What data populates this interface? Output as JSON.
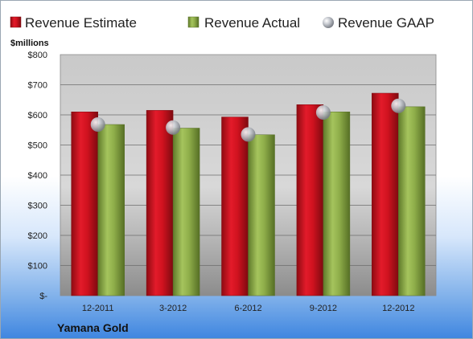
{
  "chart_data": {
    "type": "bar",
    "ylabel": "$millions",
    "categories": [
      "12-2011",
      "3-2012",
      "6-2012",
      "9-2012",
      "12-2012"
    ],
    "series": [
      {
        "name": "Revenue Estimate",
        "values": [
          610,
          615,
          593,
          634,
          672
        ],
        "color": "#c8102e"
      },
      {
        "name": "Revenue Actual",
        "values": [
          568,
          556,
          534,
          610,
          627
        ],
        "color": "#8fae4a"
      },
      {
        "name": "Revenue GAAP",
        "values": [
          568,
          558,
          535,
          608,
          630
        ],
        "marker": "sphere",
        "color": "#b9bcc2"
      }
    ],
    "y_ticks": [
      "$-",
      "$100",
      "$200",
      "$300",
      "$400",
      "$500",
      "$600",
      "$700",
      "$800"
    ],
    "ylim": [
      0,
      800
    ],
    "grid": true,
    "legend_position": "top",
    "company": "Yamana Gold"
  }
}
